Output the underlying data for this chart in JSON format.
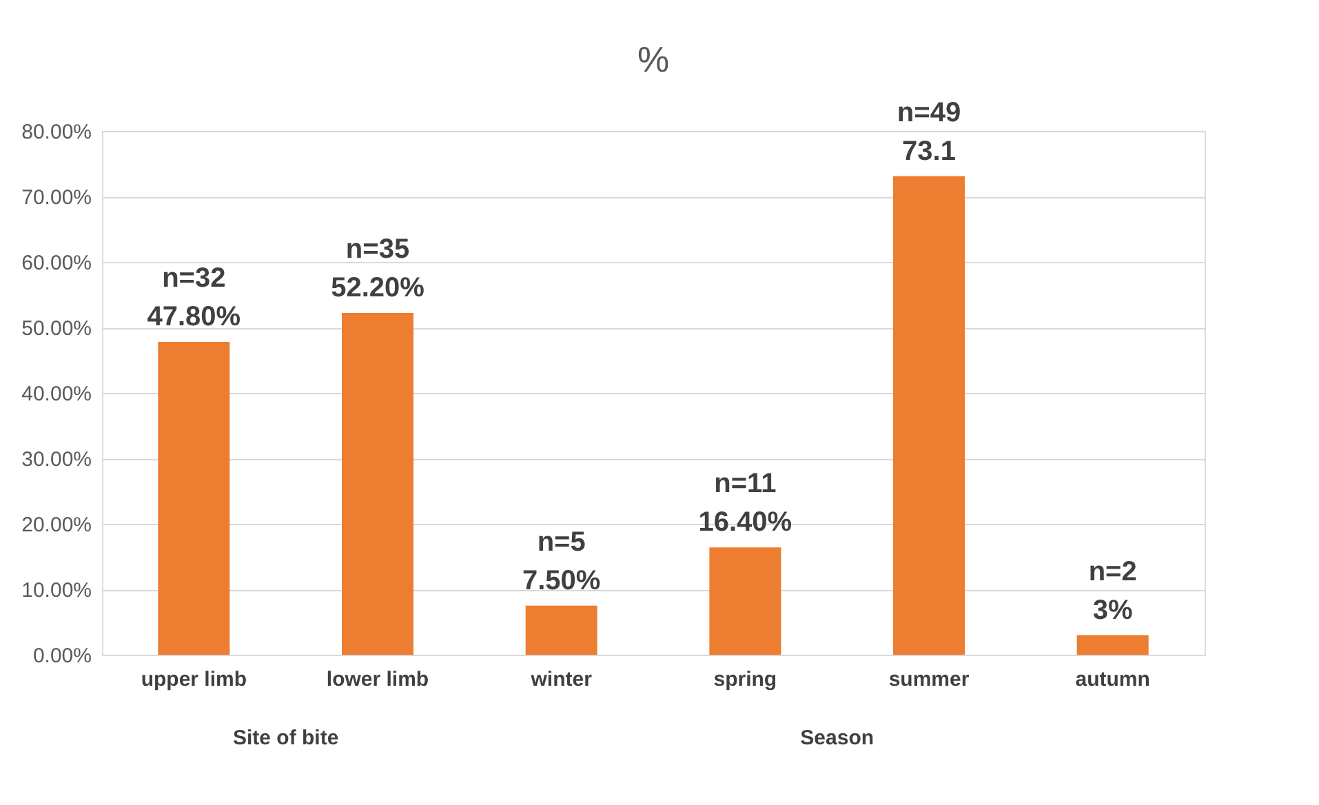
{
  "chart_data": {
    "type": "bar",
    "title": "%",
    "categories": [
      "upper limb",
      "lower limb",
      "winter",
      "spring",
      "summer",
      "autumn"
    ],
    "values": [
      47.8,
      52.2,
      7.5,
      16.4,
      73.1,
      3
    ],
    "value_labels": [
      "n=32\n47.80%",
      "n=35\n52.20%",
      "n=5\n7.50%",
      "n=11\n16.40%",
      "n=49\n73.1",
      "n=2\n3%"
    ],
    "color": "#ed7d31",
    "ylim": [
      0,
      80
    ],
    "yticks": [
      {
        "value": 0,
        "label": "0.00%"
      },
      {
        "value": 10,
        "label": "10.00%"
      },
      {
        "value": 20,
        "label": "20.00%"
      },
      {
        "value": 30,
        "label": "30.00%"
      },
      {
        "value": 40,
        "label": "40.00%"
      },
      {
        "value": 50,
        "label": "50.00%"
      },
      {
        "value": 60,
        "label": "60.00%"
      },
      {
        "value": 70,
        "label": "70.00%"
      },
      {
        "value": 80,
        "label": "80.00%"
      }
    ],
    "grid": "y",
    "annotations": [
      "Site of bite",
      "Season"
    ]
  }
}
